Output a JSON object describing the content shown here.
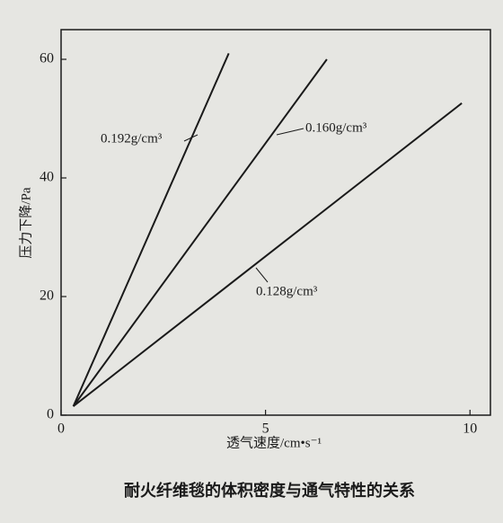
{
  "chart_data": {
    "type": "line",
    "title": "耐火纤维毯的体积密度与通气特性的关系",
    "x_label": "透气速度/cm•s⁻¹",
    "y_label": "压力下降/Pa",
    "xlim": [
      0,
      10.5
    ],
    "ylim": [
      0,
      65
    ],
    "xticks": [
      0,
      5,
      10
    ],
    "yticks": [
      0,
      20,
      40,
      60
    ],
    "color": "#1a1a1a",
    "series": [
      {
        "name": "0.192g/cm³",
        "x": [
          0.3,
          4.1
        ],
        "values": [
          1.5,
          61
        ]
      },
      {
        "name": "0.160g/cm³",
        "x": [
          0.3,
          6.5
        ],
        "values": [
          1.5,
          60
        ]
      },
      {
        "name": "0.128g/cm³",
        "x": [
          0.3,
          9.8
        ],
        "values": [
          1.5,
          52.6
        ]
      }
    ]
  }
}
